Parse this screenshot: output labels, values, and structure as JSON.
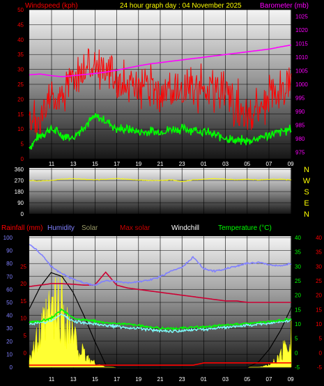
{
  "chart_data": [
    {
      "type": "line",
      "panel": "wind-pressure",
      "title": "24 hour graph day : 04 November 2025",
      "left_label": "Windspeed (kph)",
      "right_label": "Barometer (mb)",
      "x_ticks": [
        "11",
        "13",
        "15",
        "17",
        "19",
        "21",
        "23",
        "01",
        "03",
        "05",
        "07",
        "09"
      ],
      "left_ticks": [
        "0",
        "5",
        "10",
        "15",
        "20",
        "25",
        "30",
        "35",
        "40",
        "45",
        "50"
      ],
      "right_ticks": [
        "975",
        "980",
        "985",
        "990",
        "995",
        "1000",
        "1005",
        "1010",
        "1015",
        "1020",
        "1025"
      ],
      "ylim_left": [
        0,
        50
      ],
      "ylim_right": [
        972.5,
        1027.5
      ],
      "hours_since_start": [
        0,
        1,
        2,
        3,
        4,
        5,
        6,
        7,
        8,
        9,
        10,
        11,
        12,
        13,
        14,
        15,
        16,
        17,
        18,
        19,
        20,
        21,
        22,
        23,
        24
      ],
      "series": [
        {
          "role": "windspeed-gust",
          "color": "#ff0000",
          "values": [
            8,
            14,
            20,
            22,
            26,
            30,
            33,
            30,
            27,
            25,
            24,
            23,
            22,
            22,
            23,
            24,
            24,
            23,
            21,
            18,
            16,
            17,
            20,
            23,
            27
          ]
        },
        {
          "role": "windspeed-average",
          "color": "#00ff00",
          "values": [
            4,
            8,
            10,
            8,
            7,
            11,
            14,
            13,
            10,
            10,
            9,
            9,
            9,
            10,
            10,
            10,
            9,
            8,
            7,
            6,
            6,
            7,
            8,
            9,
            10
          ]
        },
        {
          "role": "barometer",
          "axis": "right",
          "color": "#ff00ff",
          "values": [
            1003.5,
            1003.8,
            1003.2,
            1002.8,
            1003.2,
            1003.6,
            1004.0,
            1004.5,
            1005.2,
            1006.0,
            1006.8,
            1007.5,
            1008.0,
            1008.5,
            1009.0,
            1009.5,
            1010.0,
            1010.5,
            1011.0,
            1011.5,
            1012.0,
            1012.5,
            1013.0,
            1013.8,
            1014.5
          ]
        }
      ]
    },
    {
      "type": "line",
      "panel": "wind-direction",
      "left_ticks": [
        "0",
        "90",
        "180",
        "270",
        "360"
      ],
      "ylim": [
        0,
        360
      ],
      "compass": [
        "N",
        "W",
        "S",
        "E",
        "N"
      ],
      "series": [
        {
          "role": "wind-direction",
          "color": "#ffff00",
          "values": [
            270,
            265,
            270,
            280,
            285,
            280,
            275,
            280,
            285,
            280,
            275,
            270,
            270,
            275,
            260,
            275,
            280,
            285,
            280,
            275,
            280,
            275,
            280,
            280,
            275
          ]
        }
      ]
    },
    {
      "type": "line",
      "panel": "rain-temp",
      "legend": [
        {
          "text": "Rainfall (mm)",
          "color": "#ff0000"
        },
        {
          "text": "Humidity",
          "color": "#8080ff"
        },
        {
          "text": "Solar",
          "color": "#999966"
        },
        {
          "text": "Max solar",
          "color": "#cc0000"
        },
        {
          "text": "Windchill",
          "color": "#ffffff"
        },
        {
          "text": "Temperature (°C)",
          "color": "#00ff00"
        }
      ],
      "x_ticks": [
        "11",
        "13",
        "15",
        "17",
        "19",
        "21",
        "23",
        "01",
        "03",
        "05",
        "07",
        "09"
      ],
      "humidity_ticks": [
        "0",
        "10",
        "20",
        "30",
        "40",
        "50",
        "60",
        "70",
        "80",
        "90",
        "100"
      ],
      "temp_ticks_inner": [
        "-5",
        "0",
        "5",
        "10",
        "15",
        "20",
        "25",
        "30",
        "35",
        "40"
      ],
      "temp_ticks_outer": [
        "-5",
        "0",
        "5",
        "10",
        "15",
        "20",
        "25",
        "30",
        "35",
        "40"
      ],
      "ylim_humidity": [
        0,
        100
      ],
      "ylim_temp": [
        -5,
        40
      ],
      "series": [
        {
          "role": "humidity",
          "color": "#8080ff",
          "values": [
            95,
            88,
            78,
            72,
            68,
            65,
            63,
            67,
            66,
            65,
            66,
            67,
            70,
            74,
            77,
            85,
            76,
            74,
            76,
            78,
            80,
            81,
            79,
            78,
            80
          ]
        },
        {
          "role": "temperature",
          "color": "#00ff00",
          "values": [
            10.5,
            11,
            12,
            15,
            12,
            11.5,
            11,
            10.5,
            10.2,
            10.0,
            9.5,
            9.0,
            8.5,
            8.4,
            8.6,
            8.8,
            9.0,
            9.3,
            9.6,
            10.0,
            10.2,
            10.5,
            10.8,
            11.2,
            11.8
          ]
        },
        {
          "role": "windchill",
          "color": "#80ffff",
          "values": [
            10.0,
            10.5,
            11.0,
            13.5,
            11.0,
            10.5,
            10.0,
            9.5,
            9.2,
            8.8,
            8.5,
            8.0,
            7.5,
            7.5,
            7.8,
            8.0,
            8.2,
            8.5,
            8.8,
            9.2,
            9.5,
            9.8,
            10.2,
            10.8,
            11.2
          ]
        },
        {
          "role": "solar",
          "color": "#ffff00",
          "values": [
            12,
            30,
            55,
            60,
            30,
            12,
            4,
            0,
            0,
            0,
            0,
            0,
            0,
            0,
            0,
            0,
            0,
            0,
            0,
            0,
            0,
            0,
            2,
            10,
            35
          ]
        },
        {
          "role": "max-solar",
          "color": "#000000",
          "values": [
            45,
            62,
            73,
            70,
            58,
            40,
            20,
            2,
            0,
            0,
            0,
            0,
            0,
            0,
            0,
            0,
            0,
            0,
            0,
            0,
            0,
            4,
            14,
            28,
            46
          ]
        },
        {
          "role": "maximum-solar-line",
          "color": "#cc0033",
          "values": [
            23,
            23.5,
            24,
            24,
            23.8,
            23.5,
            23.5,
            28,
            23.5,
            22.5,
            22,
            21.5,
            21,
            20.5,
            20,
            19.5,
            19,
            18.5,
            18,
            18,
            17.5,
            17.5,
            17.5,
            17.5,
            17.5
          ]
        },
        {
          "role": "rainfall",
          "color": "#ff0000",
          "values": [
            0,
            0,
            0,
            0,
            0,
            0,
            0,
            0,
            0,
            0,
            0,
            0,
            0,
            0,
            0,
            0,
            0.5,
            0.5,
            0.5,
            0.5,
            0.5,
            0.5,
            0.5,
            0.5,
            0.5
          ]
        }
      ]
    }
  ]
}
